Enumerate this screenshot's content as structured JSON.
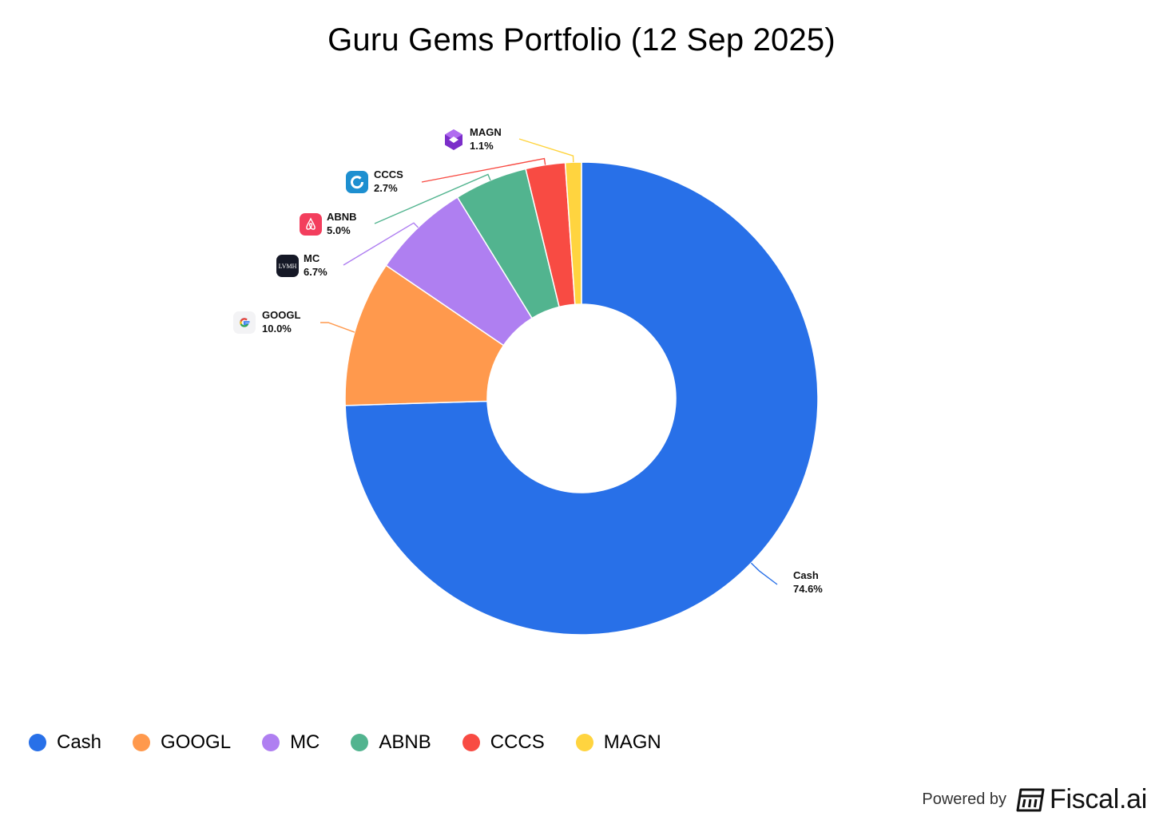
{
  "chart_data": {
    "type": "pie",
    "title": "Guru Gems Portfolio (12 Sep 2025)",
    "series": [
      {
        "name": "Cash",
        "value": 74.6,
        "label": "74.6%",
        "color": "#2870E8",
        "icon": null
      },
      {
        "name": "GOOGL",
        "value": 10.0,
        "label": "10.0%",
        "color": "#FF994D",
        "icon": "google-logo-icon"
      },
      {
        "name": "MC",
        "value": 6.7,
        "label": "6.7%",
        "color": "#AF7FF1",
        "icon": "lvmh-logo-icon"
      },
      {
        "name": "ABNB",
        "value": 5.0,
        "label": "5.0%",
        "color": "#52B48F",
        "icon": "airbnb-logo-icon"
      },
      {
        "name": "CCCS",
        "value": 2.7,
        "label": "2.7%",
        "color": "#F84B43",
        "icon": "cccs-logo-icon"
      },
      {
        "name": "MAGN",
        "value": 1.1,
        "label": "1.1%",
        "color": "#FFD43F",
        "icon": "magn-logo-icon"
      }
    ],
    "legend_position": "bottom-left",
    "donut": true
  },
  "legend": [
    "Cash",
    "GOOGL",
    "MC",
    "ABNB",
    "CCCS",
    "MAGN"
  ],
  "footer": {
    "powered_by": "Powered by",
    "brand": "Fiscal.ai",
    "lvmh_text": "LVMH"
  }
}
